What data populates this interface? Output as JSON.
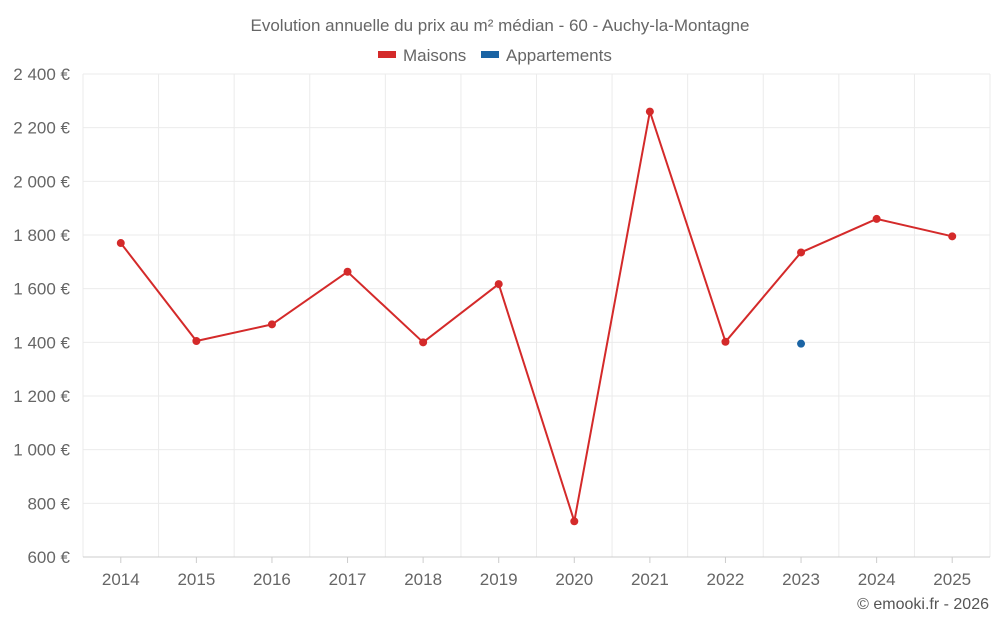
{
  "chart_data": {
    "type": "line",
    "title": "Evolution annuelle du prix au m² médian - 60 - Auchy-la-Montagne",
    "x": [
      "2014",
      "2015",
      "2016",
      "2017",
      "2018",
      "2019",
      "2020",
      "2021",
      "2022",
      "2023",
      "2024",
      "2025"
    ],
    "ylim": [
      600,
      2400
    ],
    "yticks": [
      600,
      800,
      1000,
      1200,
      1400,
      1600,
      1800,
      2000,
      2200,
      2400
    ],
    "ytick_labels": [
      "600 €",
      "800 €",
      "1 000 €",
      "1 200 €",
      "1 400 €",
      "1 600 €",
      "1 800 €",
      "2 000 €",
      "2 200 €",
      "2 400 €"
    ],
    "grid": true,
    "legend_position": "top-center",
    "series": [
      {
        "name": "Maisons",
        "color": "#d42a2a",
        "values": [
          1770,
          1405,
          1467,
          1663,
          1400,
          1617,
          733,
          2260,
          1402,
          1735,
          1860,
          1795
        ]
      },
      {
        "name": "Appartements",
        "color": "#1b64a4",
        "values": [
          null,
          null,
          null,
          null,
          null,
          null,
          null,
          null,
          null,
          1395,
          null,
          null
        ]
      }
    ]
  },
  "credit": "© emooki.fr - 2026"
}
